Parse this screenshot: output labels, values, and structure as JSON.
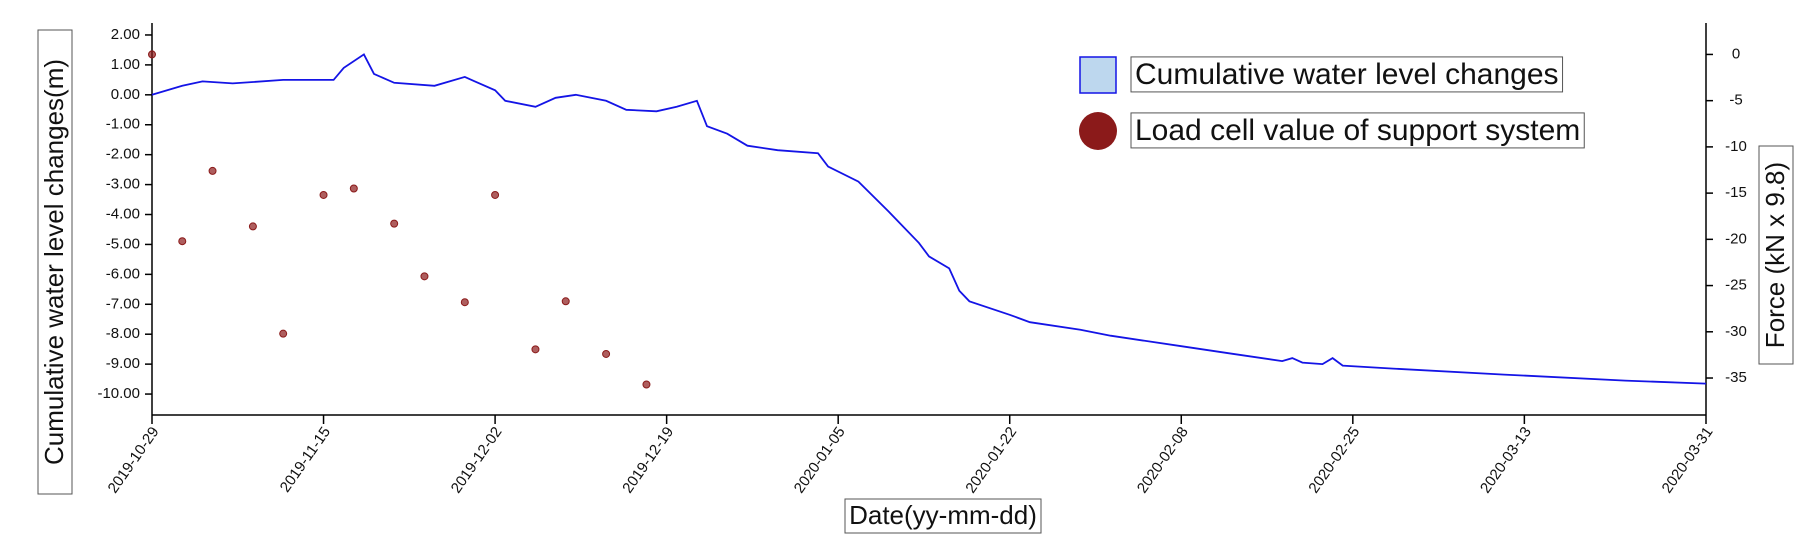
{
  "chart_data": {
    "type": "line",
    "xlabel": "Date(yy-mm-dd)",
    "ylabel": "Cumulative water level changes(m)",
    "y2label": "Force (kN x 9.8)",
    "legend": "upper right",
    "xlim": [
      "2019-10-29",
      "2020-03-31"
    ],
    "xticks": [
      "2019-10-29",
      "2019-11-15",
      "2019-12-02",
      "2019-12-19",
      "2020-01-05",
      "2020-01-22",
      "2020-02-08",
      "2020-02-25",
      "2020-03-13",
      "2020-03-31"
    ],
    "ylim": [
      -10.7,
      2.4
    ],
    "yticks": [
      {
        "value": 2,
        "label": "2.00"
      },
      {
        "value": 1,
        "label": "1.00"
      },
      {
        "value": 0,
        "label": "0.00"
      },
      {
        "value": -1,
        "label": "-1.00"
      },
      {
        "value": -2,
        "label": "-2.00"
      },
      {
        "value": -3,
        "label": "-3.00"
      },
      {
        "value": -4,
        "label": "-4.00"
      },
      {
        "value": -5,
        "label": "-5.00"
      },
      {
        "value": -6,
        "label": "-6.00"
      },
      {
        "value": -7,
        "label": "-7.00"
      },
      {
        "value": -8,
        "label": "-8.00"
      },
      {
        "value": -9,
        "label": "-9.00"
      },
      {
        "value": -10,
        "label": "-10.00"
      }
    ],
    "y2lim": [
      -39,
      3.4
    ],
    "y2ticks": [
      0,
      -5,
      -10,
      -15,
      -20,
      -25,
      -30,
      -35
    ],
    "series": [
      {
        "name": "Cumulative water level changes",
        "type": "line",
        "color": "#1414e6",
        "x": [
          "2019-10-29",
          "2019-11-01",
          "2019-11-03",
          "2019-11-06",
          "2019-11-11",
          "2019-11-16",
          "2019-11-17",
          "2019-11-19",
          "2019-11-20",
          "2019-11-22",
          "2019-11-26",
          "2019-11-29",
          "2019-11-30",
          "2019-12-02",
          "2019-12-03",
          "2019-12-06",
          "2019-12-08",
          "2019-12-10",
          "2019-12-13",
          "2019-12-15",
          "2019-12-18",
          "2019-12-20",
          "2019-12-22",
          "2019-12-23",
          "2019-12-25",
          "2019-12-27",
          "2019-12-30",
          "2020-01-03",
          "2020-01-04",
          "2020-01-07",
          "2020-01-10",
          "2020-01-13",
          "2020-01-14",
          "2020-01-16",
          "2020-01-17",
          "2020-01-18",
          "2020-01-22",
          "2020-01-24",
          "2020-01-29",
          "2020-02-01",
          "2020-02-08",
          "2020-02-13",
          "2020-02-18",
          "2020-02-19",
          "2020-02-20",
          "2020-02-22",
          "2020-02-23",
          "2020-02-24",
          "2020-02-29",
          "2020-03-11",
          "2020-03-23",
          "2020-03-31"
        ],
        "values": [
          0.0,
          0.3,
          0.45,
          0.38,
          0.5,
          0.5,
          0.9,
          1.35,
          0.7,
          0.4,
          0.3,
          0.6,
          0.45,
          0.15,
          -0.2,
          -0.4,
          -0.1,
          0.0,
          -0.2,
          -0.5,
          -0.55,
          -0.4,
          -0.2,
          -1.05,
          -1.3,
          -1.7,
          -1.85,
          -1.95,
          -2.4,
          -2.9,
          -3.9,
          -4.95,
          -5.4,
          -5.8,
          -6.55,
          -6.9,
          -7.35,
          -7.6,
          -7.85,
          -8.05,
          -8.4,
          -8.65,
          -8.9,
          -8.8,
          -8.95,
          -9.0,
          -8.8,
          -9.05,
          -9.15,
          -9.35,
          -9.55,
          -9.65
        ]
      },
      {
        "name": "Load cell value of support system",
        "type": "scatter",
        "axis": "y2",
        "color": "#8b1a1a",
        "x": [
          "2019-10-29",
          "2019-11-01",
          "2019-11-04",
          "2019-11-08",
          "2019-11-11",
          "2019-11-15",
          "2019-11-18",
          "2019-11-22",
          "2019-11-25",
          "2019-11-29",
          "2019-12-02",
          "2019-12-06",
          "2019-12-09",
          "2019-12-13",
          "2019-12-17"
        ],
        "values": [
          0.0,
          -20.2,
          -12.6,
          -18.6,
          -30.2,
          -15.2,
          -14.5,
          -18.3,
          -24.0,
          -26.8,
          -15.2,
          -31.9,
          -26.7,
          -32.4,
          -35.7
        ]
      }
    ]
  }
}
